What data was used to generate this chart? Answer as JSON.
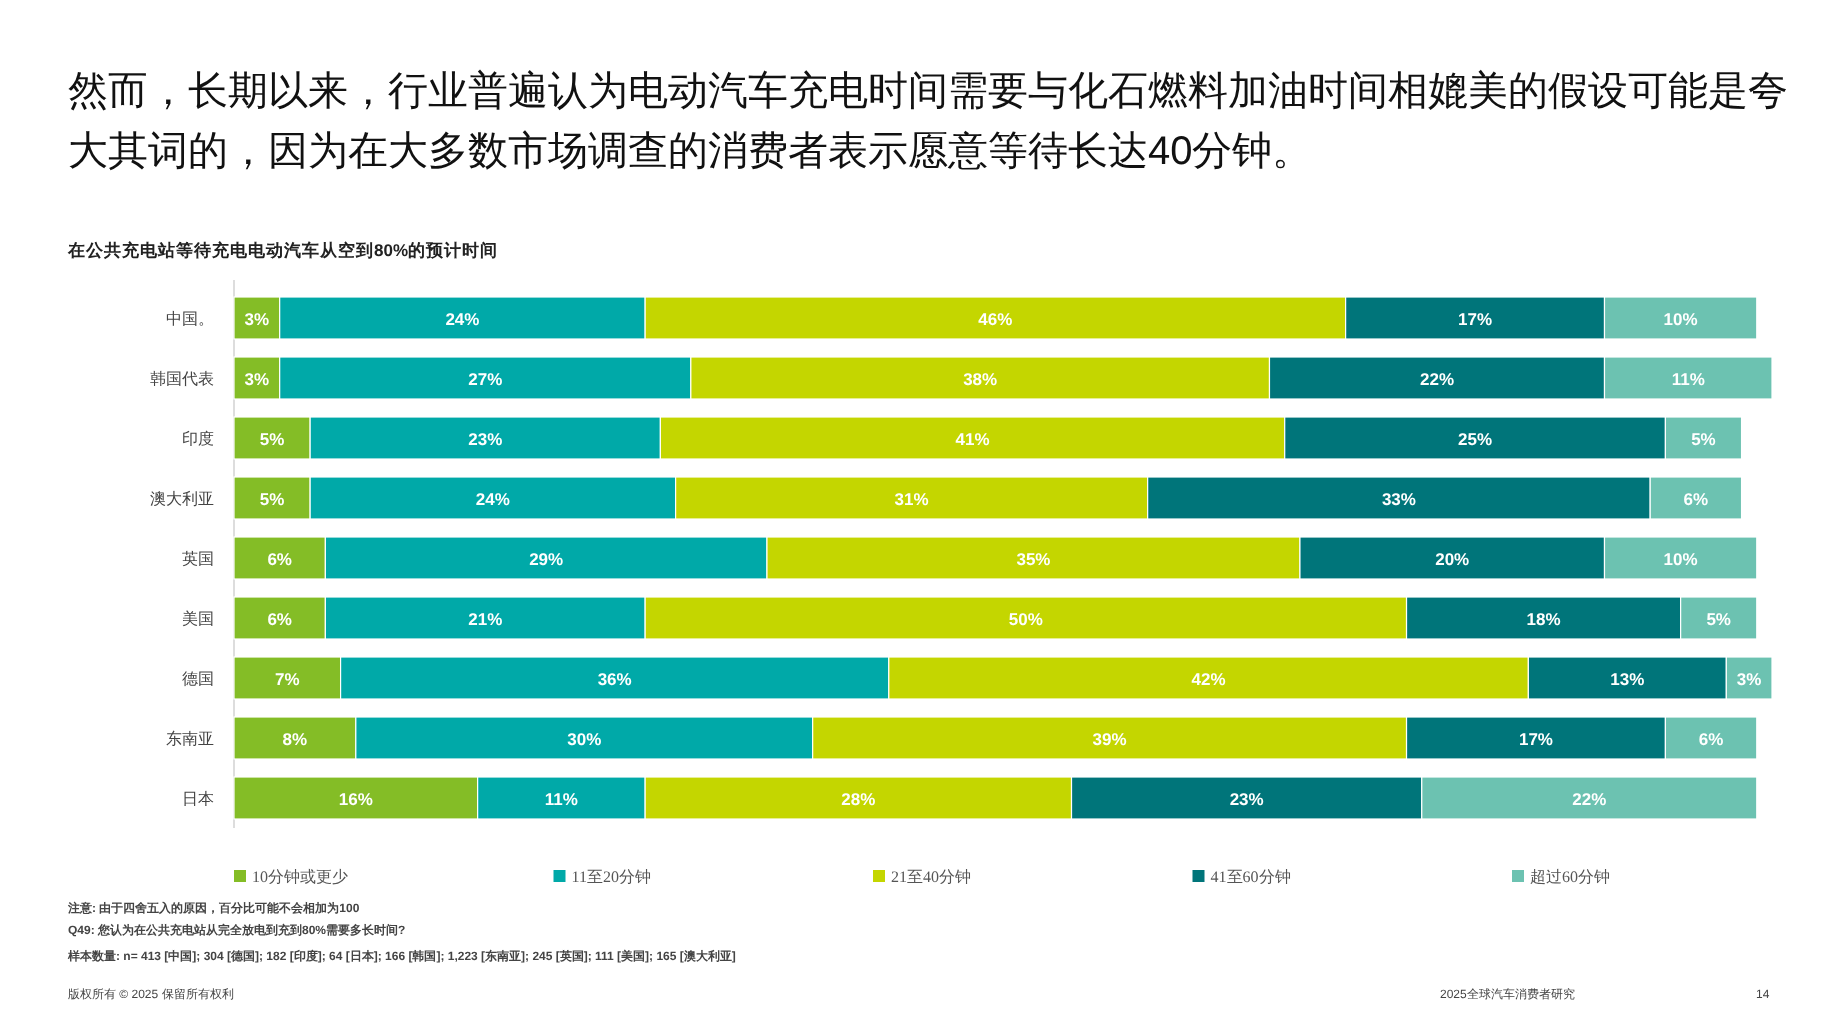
{
  "chart_data": {
    "type": "bar",
    "orientation": "horizontal",
    "stacked": true,
    "legend": "bottom",
    "title": "然而，长期以来，行业普遍认为电动汽车充电时间需要与化石燃料加油时间相媲美的假设可能是夸大其词的，因为在大多数市场调查的消费者表示愿意等待长达40分钟。",
    "subtitle": "在公共充电站等待充电电动汽车从空到80%的预计时间",
    "categories": [
      "中国。",
      "韩国代表",
      "印度",
      "澳大利亚",
      "英国",
      "美国",
      "德国",
      "东南亚",
      "日本"
    ],
    "series": [
      {
        "name": "10分钟或更少",
        "color": "#84bd26",
        "values": [
          3,
          3,
          5,
          5,
          6,
          6,
          7,
          8,
          16
        ],
        "value_labels": [
          "3%",
          "3%",
          "5%",
          "5%",
          "6%",
          "6%",
          "7%",
          "8%",
          "16%"
        ]
      },
      {
        "name": "11至20分钟",
        "color": "#00a9a8",
        "values": [
          24,
          27,
          23,
          24,
          29,
          21,
          36,
          30,
          11
        ],
        "value_labels": [
          "24%",
          "27%",
          "23%",
          "24%",
          "29%",
          "21%",
          "36%",
          "30%",
          "11%"
        ]
      },
      {
        "name": "21至40分钟",
        "color": "#c4d600",
        "values": [
          46,
          38,
          41,
          31,
          35,
          50,
          42,
          39,
          28
        ],
        "value_labels": [
          "46%",
          "38%",
          "41%",
          "31%",
          "35%",
          "50%",
          "42%",
          "39%",
          "28%"
        ]
      },
      {
        "name": "41至60分钟",
        "color": "#00757a",
        "values": [
          17,
          22,
          25,
          33,
          20,
          18,
          13,
          17,
          23
        ],
        "value_labels": [
          "17%",
          "22%",
          "25%",
          "33%",
          "20%",
          "18%",
          "13%",
          "17%",
          "23%"
        ]
      },
      {
        "name": "超过60分钟",
        "color": "#6cc2b1",
        "values": [
          10,
          11,
          5,
          6,
          10,
          5,
          3,
          6,
          22
        ],
        "value_labels": [
          "10%",
          "11%",
          "5%",
          "6%",
          "10%",
          "5%",
          "3%",
          "6%",
          "22%"
        ]
      }
    ],
    "annotations": [
      "注意: 由于四舍五入的原因，百分比可能不会相加为100",
      "Q49: 您认为在公共充电站从完全放电到充到80%需要多长时间?",
      "样本数量: n= 413 [中国]; 304 [德国]; 182 [印度]; 64 [日本]; 166 [韩国]; 1,223 [东南亚]; 245 [英国]; 111 [美国]; 165 [澳大利亚]",
      "版权所有 © 2025 保留所有权利",
      "2025全球汽车消费者研究",
      "14"
    ]
  }
}
